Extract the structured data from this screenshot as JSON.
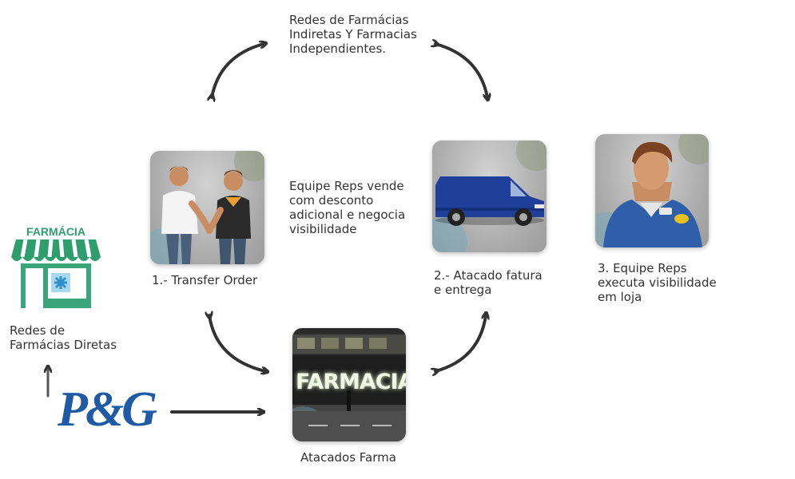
{
  "top_node": {
    "text": "Redes de Farmácias\nIndiretas Y Farmacias\nIndependientes."
  },
  "center_note": {
    "text": "Equipe Reps vende\ncom desconto\nadicional e negocia\nvisibilidade"
  },
  "step1": {
    "label": "1.- Transfer Order"
  },
  "step2": {
    "label": "2.- Atacado fatura\n     e entrega"
  },
  "step3": {
    "label": "3. Equipe Reps\n    executa visibilidade\n    em loja"
  },
  "wholesale": {
    "label": "Atacados Farma",
    "sign": "FARMACIA"
  },
  "direct_pharmacy": {
    "sign": "FARMÁCIA",
    "label": "Redes de\nFarmácias Diretas"
  },
  "brand": {
    "logo": "P&G"
  },
  "colors": {
    "arrow": "#333333",
    "pg_blue": "#1f5aa6",
    "pharmacy_green": "#2e9e6e",
    "van_blue": "#1f3f9a"
  }
}
